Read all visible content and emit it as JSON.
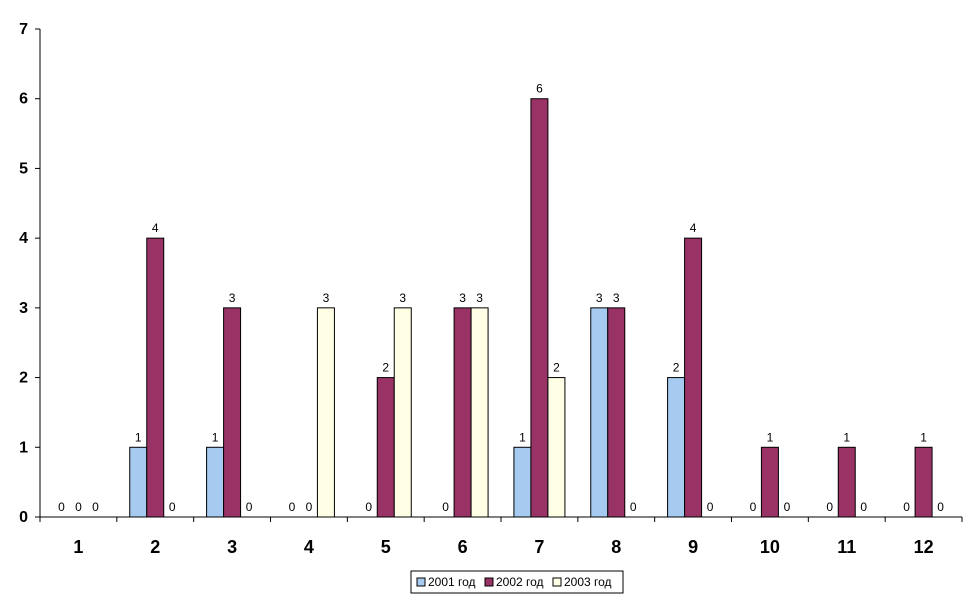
{
  "chart_data": {
    "type": "bar",
    "categories": [
      "1",
      "2",
      "3",
      "4",
      "5",
      "6",
      "7",
      "8",
      "9",
      "10",
      "11",
      "12"
    ],
    "series": [
      {
        "name": "2001 год",
        "color": "#a6caf0",
        "values": [
          0,
          1,
          1,
          0,
          0,
          0,
          1,
          3,
          2,
          0,
          0,
          0
        ]
      },
      {
        "name": "2002 год",
        "color": "#993366",
        "values": [
          0,
          4,
          3,
          0,
          2,
          3,
          6,
          3,
          4,
          1,
          1,
          1
        ]
      },
      {
        "name": "2003 год",
        "color": "#ffffe6",
        "values": [
          0,
          0,
          0,
          3,
          3,
          3,
          2,
          0,
          0,
          0,
          0,
          0
        ]
      }
    ],
    "ylim": [
      0,
      7
    ],
    "yticks": [
      0,
      1,
      2,
      3,
      4,
      5,
      6,
      7
    ],
    "grid": false,
    "data_labels": true,
    "legend_position": "bottom"
  }
}
